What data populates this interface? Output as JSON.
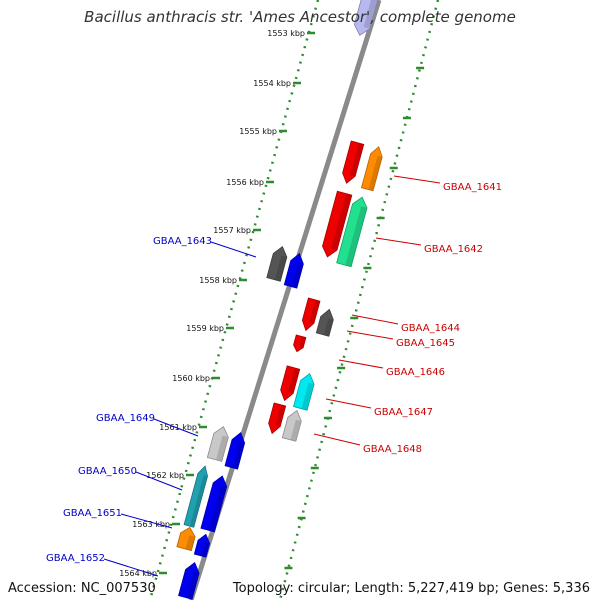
{
  "header": {
    "title": "Bacillus anthracis str. 'Ames Ancestor', complete genome"
  },
  "footer": {
    "accession": "Accession: NC_007530",
    "topology": "Topology: circular; Length: 5,227,419 bp; Genes: 5,336"
  },
  "colors": {
    "backbone": "#8a8a8a",
    "tick": "#2e8b2e",
    "forward_label": "#cc0000",
    "reverse_label": "#0000cc"
  },
  "scale_labels": [
    "1553 kbp",
    "1554 kbp",
    "1555 kbp",
    "1556 kbp",
    "1557 kbp",
    "1558 kbp",
    "1559 kbp",
    "1560 kbp",
    "1561 kbp",
    "1562 kbp",
    "1563 kbp",
    "1564 kbp"
  ],
  "forward_gene_labels": [
    "GBAA_1641",
    "GBAA_1642",
    "GBAA_1644",
    "GBAA_1645",
    "GBAA_1646",
    "GBAA_1647",
    "GBAA_1648"
  ],
  "reverse_gene_labels": [
    "GBAA_1643",
    "GBAA_1649",
    "GBAA_1650",
    "GBAA_1651",
    "GBAA_1652"
  ],
  "features": [
    {
      "strand": "reverse",
      "color": "#b8b8f0"
    },
    {
      "strand": "forward",
      "color": "#ee0000"
    },
    {
      "strand": "forward",
      "color": "#ff8c00"
    },
    {
      "strand": "forward",
      "color": "#ee0000"
    },
    {
      "strand": "forward",
      "color": "#22e090"
    },
    {
      "strand": "reverse",
      "color": "#555555"
    },
    {
      "strand": "reverse",
      "color": "#0000ee"
    },
    {
      "strand": "forward",
      "color": "#ee0000"
    },
    {
      "strand": "forward",
      "color": "#555555"
    },
    {
      "strand": "forward",
      "color": "#ee0000"
    },
    {
      "strand": "forward",
      "color": "#ee0000"
    },
    {
      "strand": "forward",
      "color": "#00e8f0"
    },
    {
      "strand": "forward",
      "color": "#ee0000"
    },
    {
      "strand": "forward",
      "color": "#c8c8c8"
    },
    {
      "strand": "reverse",
      "color": "#c8c8c8"
    },
    {
      "strand": "reverse",
      "color": "#0000ee"
    },
    {
      "strand": "reverse",
      "color": "#20a0b0"
    },
    {
      "strand": "reverse",
      "color": "#0000ee"
    },
    {
      "strand": "reverse",
      "color": "#ff8c00"
    },
    {
      "strand": "reverse",
      "color": "#0000ee"
    },
    {
      "strand": "reverse",
      "color": "#0000ee"
    }
  ]
}
